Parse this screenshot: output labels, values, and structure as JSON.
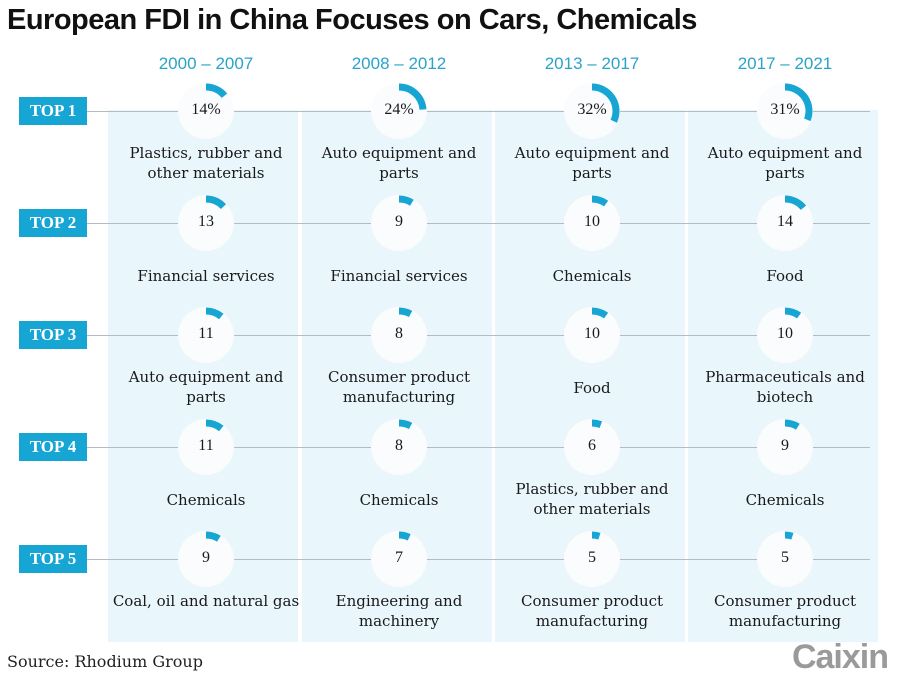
{
  "title": "European FDI in China Focuses on Cars, Chemicals",
  "source": "Source: Rhodium Group",
  "logo": "Caixin",
  "colors": {
    "accent": "#17a6d3",
    "column_bg": "#e9f6fb",
    "period_text": "#2aa3c9",
    "ring_bg": "#fafcfd"
  },
  "chart_data": {
    "type": "table",
    "title": "European FDI in China Focuses on Cars, Chemicals",
    "unit": "percent share of European FDI",
    "periods": [
      "2000 – 2007",
      "2008 – 2012",
      "2013 – 2017",
      "2017 – 2021"
    ],
    "ranks": [
      "TOP 1",
      "TOP 2",
      "TOP 3",
      "TOP 4",
      "TOP 5"
    ],
    "series": [
      {
        "period": "2000 – 2007",
        "items": [
          {
            "rank": 1,
            "label": "14%",
            "value": 14,
            "sector": "Plastics, rubber and other materials"
          },
          {
            "rank": 2,
            "label": "13",
            "value": 13,
            "sector": "Financial services"
          },
          {
            "rank": 3,
            "label": "11",
            "value": 11,
            "sector": "Auto equipment and parts"
          },
          {
            "rank": 4,
            "label": "11",
            "value": 11,
            "sector": "Chemicals"
          },
          {
            "rank": 5,
            "label": "9",
            "value": 9,
            "sector": "Coal, oil and natural gas"
          }
        ]
      },
      {
        "period": "2008 – 2012",
        "items": [
          {
            "rank": 1,
            "label": "24%",
            "value": 24,
            "sector": "Auto equipment and parts"
          },
          {
            "rank": 2,
            "label": "9",
            "value": 9,
            "sector": "Financial services"
          },
          {
            "rank": 3,
            "label": "8",
            "value": 8,
            "sector": "Consumer product manufacturing"
          },
          {
            "rank": 4,
            "label": "8",
            "value": 8,
            "sector": "Chemicals"
          },
          {
            "rank": 5,
            "label": "7",
            "value": 7,
            "sector": "Engineering and machinery"
          }
        ]
      },
      {
        "period": "2013 – 2017",
        "items": [
          {
            "rank": 1,
            "label": "32%",
            "value": 32,
            "sector": "Auto equipment and parts"
          },
          {
            "rank": 2,
            "label": "10",
            "value": 10,
            "sector": "Chemicals"
          },
          {
            "rank": 3,
            "label": "10",
            "value": 10,
            "sector": "Food"
          },
          {
            "rank": 4,
            "label": "6",
            "value": 6,
            "sector": "Plastics, rubber and other materials"
          },
          {
            "rank": 5,
            "label": "5",
            "value": 5,
            "sector": "Consumer product manufacturing"
          }
        ]
      },
      {
        "period": "2017 – 2021",
        "items": [
          {
            "rank": 1,
            "label": "31%",
            "value": 31,
            "sector": "Auto equipment and parts"
          },
          {
            "rank": 2,
            "label": "14",
            "value": 14,
            "sector": "Food"
          },
          {
            "rank": 3,
            "label": "10",
            "value": 10,
            "sector": "Pharmaceuticals and biotech"
          },
          {
            "rank": 4,
            "label": "9",
            "value": 9,
            "sector": "Chemicals"
          },
          {
            "rank": 5,
            "label": "5",
            "value": 5,
            "sector": "Consumer product manufacturing"
          }
        ]
      }
    ]
  }
}
